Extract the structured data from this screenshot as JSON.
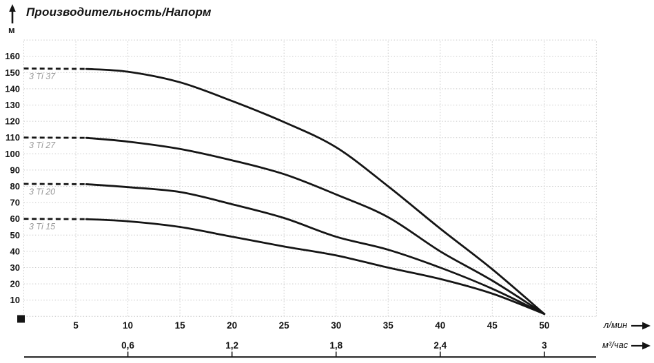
{
  "header": {
    "title": "Производительность/Напорм",
    "y_unit": "м"
  },
  "axis_units": {
    "primary": "л/мин",
    "secondary": "м³/час"
  },
  "colors": {
    "curve": "#151515",
    "grid": "#c9c9c9",
    "curve_label": "#9a9a9a",
    "text": "#141414"
  },
  "chart_data": {
    "type": "line",
    "title": "Производительность/Напорм",
    "xlabel": "л/мин",
    "x2label": "м³/час",
    "ylabel": "м",
    "x_range_lpm": [
      0,
      55
    ],
    "y_range_m": [
      0,
      170
    ],
    "grid": true,
    "legend_position": "inline-left",
    "y_ticks": [
      10,
      20,
      30,
      40,
      50,
      60,
      70,
      80,
      90,
      100,
      110,
      120,
      130,
      140,
      150,
      160
    ],
    "x_ticks": [
      5,
      10,
      15,
      20,
      25,
      30,
      35,
      40,
      45,
      50
    ],
    "x2_ticks": [
      {
        "label": "0,6",
        "lpm": 10
      },
      {
        "label": "1,2",
        "lpm": 20
      },
      {
        "label": "1,8",
        "lpm": 30
      },
      {
        "label": "2,4",
        "lpm": 40
      },
      {
        "label": "3",
        "lpm": 50
      }
    ],
    "series": [
      {
        "name": "3 Ti 37",
        "max_head_m": 152.5,
        "dashed_until_lpm": 6.2,
        "points": [
          [
            0,
            152.5
          ],
          [
            6,
            152.2
          ],
          [
            10,
            150.5
          ],
          [
            15,
            144
          ],
          [
            20,
            132.5
          ],
          [
            25,
            119.5
          ],
          [
            30,
            104
          ],
          [
            35,
            80
          ],
          [
            40,
            54
          ],
          [
            45,
            29
          ],
          [
            50,
            1.5
          ]
        ]
      },
      {
        "name": "3 Ti 27",
        "max_head_m": 110,
        "dashed_until_lpm": 6.2,
        "points": [
          [
            0,
            110
          ],
          [
            6,
            109.8
          ],
          [
            10,
            107.5
          ],
          [
            15,
            103
          ],
          [
            20,
            96
          ],
          [
            25,
            87.5
          ],
          [
            30,
            75
          ],
          [
            35,
            61
          ],
          [
            40,
            40
          ],
          [
            45,
            22
          ],
          [
            50,
            1.5
          ]
        ]
      },
      {
        "name": "3 Ti 20",
        "max_head_m": 81.5,
        "dashed_until_lpm": 6.2,
        "points": [
          [
            0,
            81.5
          ],
          [
            6,
            81.3
          ],
          [
            10,
            79.5
          ],
          [
            15,
            76.5
          ],
          [
            20,
            69
          ],
          [
            25,
            60.5
          ],
          [
            30,
            49
          ],
          [
            35,
            41
          ],
          [
            40,
            30
          ],
          [
            45,
            17
          ],
          [
            50,
            1.5
          ]
        ]
      },
      {
        "name": "3 Ti 15",
        "max_head_m": 60,
        "dashed_until_lpm": 6.2,
        "points": [
          [
            0,
            60
          ],
          [
            6,
            59.8
          ],
          [
            10,
            58.5
          ],
          [
            15,
            55
          ],
          [
            20,
            49
          ],
          [
            25,
            43
          ],
          [
            30,
            37.5
          ],
          [
            35,
            30
          ],
          [
            40,
            23
          ],
          [
            45,
            14
          ],
          [
            50,
            1.5
          ]
        ]
      }
    ]
  }
}
